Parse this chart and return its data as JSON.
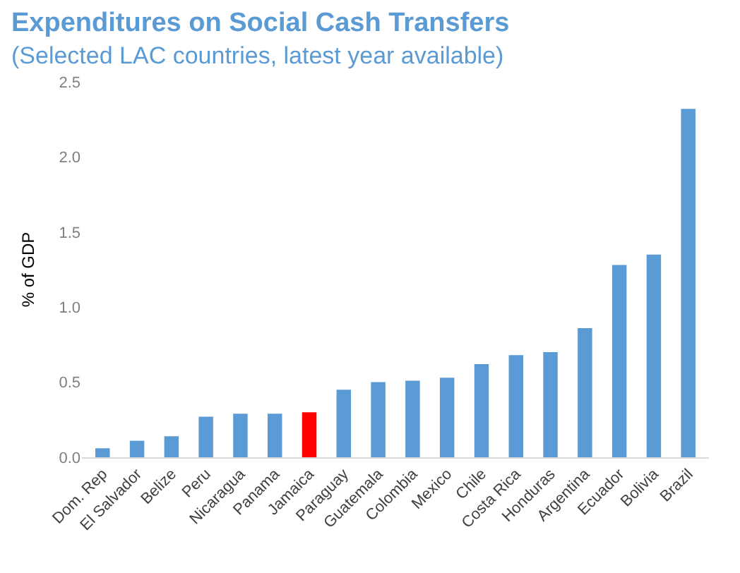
{
  "chart_data": {
    "type": "bar",
    "title": "Expenditures on Social Cash Transfers",
    "subtitle": "(Selected LAC countries, latest year available)",
    "ylabel": "% of GDP",
    "categories": [
      "Dom. Rep",
      "El Salvador",
      "Belize",
      "Peru",
      "Nicaragua",
      "Panama",
      "Jamaica",
      "Paraguay",
      "Guatemala",
      "Colombia",
      "Mexico",
      "Chile",
      "Costa Rica",
      "Honduras",
      "Argentina",
      "Ecuador",
      "Bolivia",
      "Brazil"
    ],
    "values": [
      0.06,
      0.11,
      0.14,
      0.27,
      0.29,
      0.29,
      0.3,
      0.45,
      0.5,
      0.51,
      0.53,
      0.62,
      0.68,
      0.7,
      0.86,
      1.28,
      1.35,
      2.32
    ],
    "colors": [
      "#5b9bd5",
      "#5b9bd5",
      "#5b9bd5",
      "#5b9bd5",
      "#5b9bd5",
      "#5b9bd5",
      "#ff0000",
      "#5b9bd5",
      "#5b9bd5",
      "#5b9bd5",
      "#5b9bd5",
      "#5b9bd5",
      "#5b9bd5",
      "#5b9bd5",
      "#5b9bd5",
      "#5b9bd5",
      "#5b9bd5",
      "#5b9bd5"
    ],
    "ylim": [
      0,
      2.5
    ],
    "yticks": [
      {
        "value": 0,
        "label": "0.0"
      },
      {
        "value": 0.5,
        "label": "0.5"
      },
      {
        "value": 1,
        "label": "1.0"
      },
      {
        "value": 1.5,
        "label": "1.5"
      },
      {
        "value": 2,
        "label": "2.0"
      },
      {
        "value": 2.5,
        "label": "2.5"
      }
    ],
    "grid": false
  }
}
